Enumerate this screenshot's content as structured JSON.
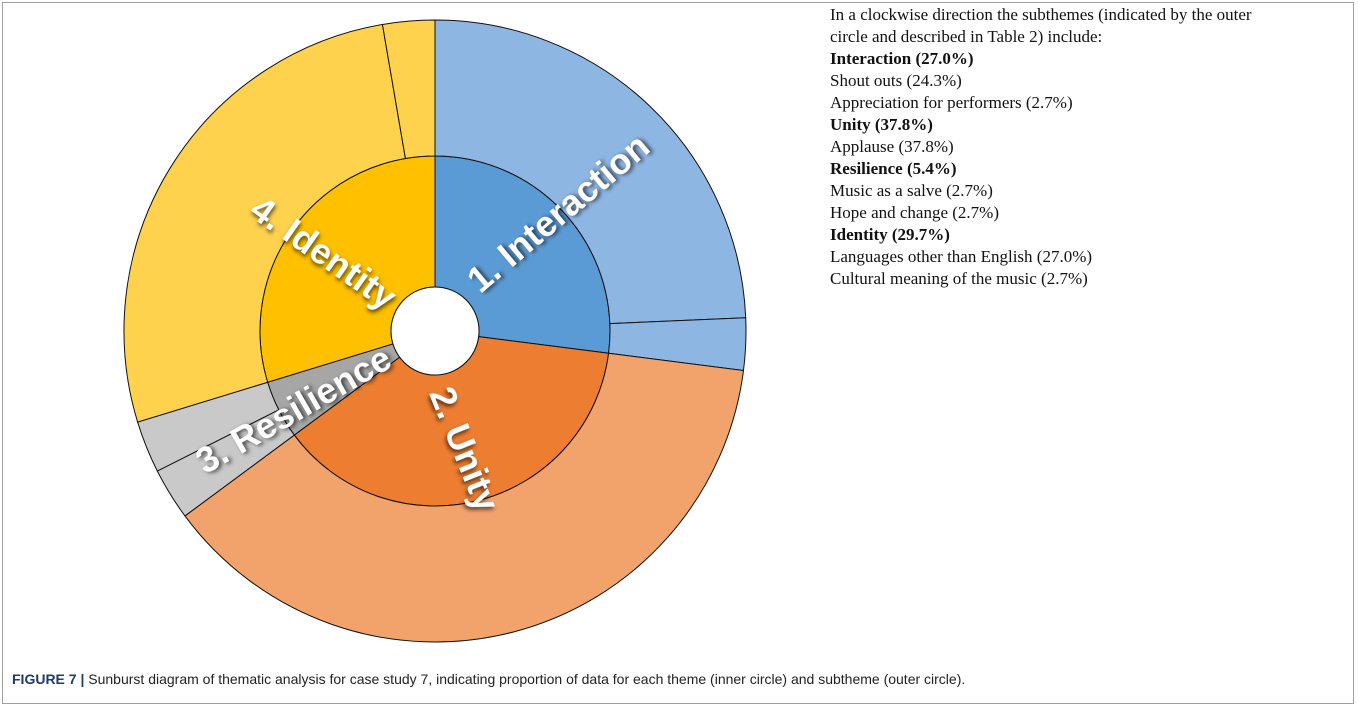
{
  "chart_data": {
    "type": "sunburst",
    "description": "In a clockwise direction the subthemes (indicated by the outer circle and described in Table 2) include:",
    "caption_label": "FIGURE 7 |",
    "caption": "Sunburst diagram of thematic analysis for case study 7, indicating proportion of data for each theme (inner circle) and subtheme (outer circle).",
    "themes": [
      {
        "name": "Interaction",
        "label": "1. Interaction",
        "value": 27.0,
        "value_label": "(27.0%)",
        "color": "#5b9bd5",
        "children": [
          {
            "name": "Shout outs",
            "value": 24.3,
            "value_label": "(24.3%)",
            "color": "#8eb6e3"
          },
          {
            "name": "Appreciation for performers",
            "value": 2.7,
            "value_label": "(2.7%)",
            "color": "#8eb6e3"
          }
        ]
      },
      {
        "name": "Unity",
        "label": "2. Unity",
        "value": 37.8,
        "value_label": "(37.8%)",
        "color": "#ed7d31",
        "children": [
          {
            "name": "Applause",
            "value": 37.8,
            "value_label": "(37.8%)",
            "color": "#f2a26b"
          }
        ]
      },
      {
        "name": "Resilience",
        "label": "3. Resilience",
        "value": 5.4,
        "value_label": "(5.4%)",
        "color": "#a6a6a6",
        "children": [
          {
            "name": "Music as a salve",
            "value": 2.7,
            "value_label": "(2.7%)",
            "color": "#c9c9c9"
          },
          {
            "name": "Hope and change",
            "value": 2.7,
            "value_label": "(2.7%)",
            "color": "#c9c9c9"
          }
        ]
      },
      {
        "name": "Identity",
        "label": "4. Identity",
        "value": 29.7,
        "value_label": "(29.7%)",
        "color": "#ffc000",
        "children": [
          {
            "name": "Languages other than English",
            "value": 27.0,
            "value_label": "(27.0%)",
            "color": "#ffd24d"
          },
          {
            "name": "Cultural meaning of the music",
            "value": 2.7,
            "value_label": "(2.7%)",
            "color": "#ffd24d"
          }
        ]
      }
    ]
  }
}
